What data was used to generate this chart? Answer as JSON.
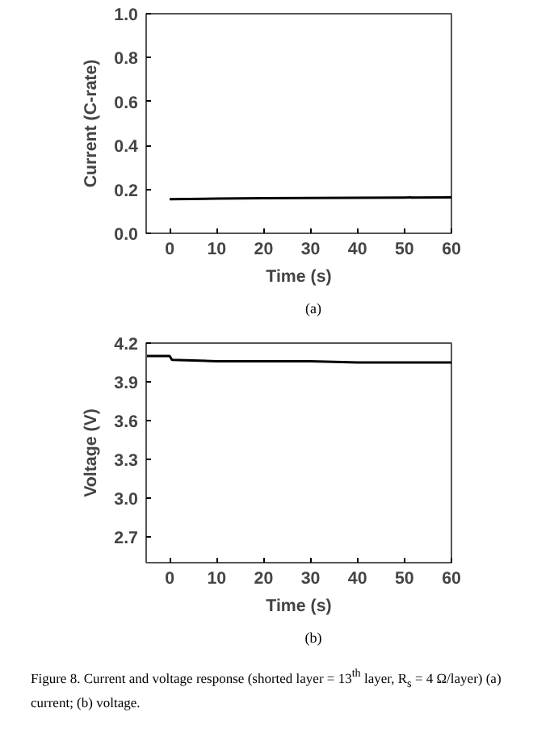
{
  "chart_data": [
    {
      "type": "line",
      "xlabel": "Time (s)",
      "ylabel": "Current (C-rate)",
      "annotations": [
        "(a)"
      ],
      "x": [
        0,
        10,
        20,
        30,
        40,
        50,
        60
      ],
      "series": [
        {
          "color": "#000000",
          "values": [
            0.155,
            0.158,
            0.16,
            0.161,
            0.162,
            0.163,
            0.164
          ]
        }
      ],
      "xlim": [
        -5,
        60
      ],
      "xticks": [
        0,
        10,
        20,
        30,
        40,
        50,
        60
      ],
      "ylim": [
        0,
        1.0
      ],
      "yticks": [
        {
          "value": 0,
          "label": "0.0"
        },
        0.2,
        0.4,
        0.6,
        0.8,
        {
          "value": 1.0,
          "label": "1.0"
        }
      ],
      "grid": false
    },
    {
      "type": "line",
      "xlabel": "Time (s)",
      "ylabel": "Voltage (V)",
      "annotations": [
        "(b)",
        "Figure 8. Current and voltage response (shorted layer = 13$^{th}$ layer, R$_{s}$ = 4 Ω/layer) (a) current; (b) voltage."
      ],
      "x": [
        -5,
        0,
        0.5,
        10,
        20,
        30,
        40,
        50,
        60
      ],
      "series": [
        {
          "color": "#000000",
          "values": [
            4.1,
            4.1,
            4.07,
            4.06,
            4.06,
            4.06,
            4.05,
            4.05,
            4.05
          ]
        }
      ],
      "xlim": [
        -5,
        60
      ],
      "xticks": [
        0,
        10,
        20,
        30,
        40,
        50,
        60
      ],
      "ylim": [
        2.5,
        4.2
      ],
      "yticks": [
        {
          "value": 2.7,
          "label": "2.7"
        },
        {
          "value": 3.0,
          "label": "3.0"
        },
        {
          "value": 3.3,
          "label": "3.3"
        },
        {
          "value": 3.6,
          "label": "3.6"
        },
        {
          "value": 3.9,
          "label": "3.9"
        },
        {
          "value": 4.2,
          "label": "4.2"
        }
      ],
      "grid": false
    }
  ]
}
